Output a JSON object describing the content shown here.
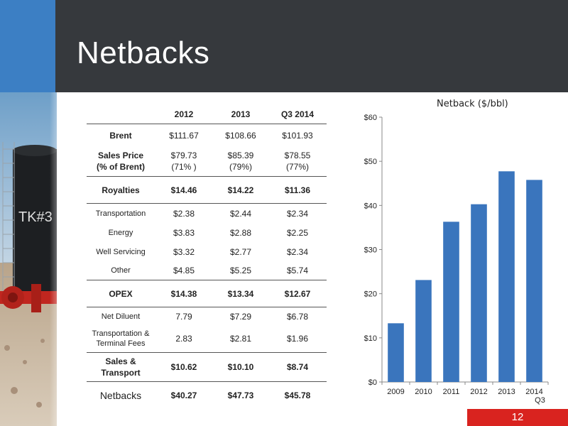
{
  "slide": {
    "title": "Netbacks",
    "page_number": "12",
    "colors": {
      "header": "#36393d",
      "accent_blue": "#3c7fc4",
      "page_badge": "#d9231f",
      "bar": "#3a75bd"
    }
  },
  "photo": {
    "tank_label": "TK#3"
  },
  "table": {
    "headers": [
      "",
      "2012",
      "2013",
      "Q3 2014"
    ],
    "brent": {
      "label": "Brent",
      "values": [
        "$111.67",
        "$108.66",
        "$101.93"
      ]
    },
    "sales_price": {
      "label_line1": "Sales Price",
      "label_line2": "(% of Brent)",
      "values": [
        "$79.73",
        "$85.39",
        "$78.55"
      ],
      "pcts": [
        "(71% )",
        "(79%)",
        "(77%)"
      ]
    },
    "royalties": {
      "label": "Royalties",
      "values": [
        "$14.46",
        "$14.22",
        "$11.36"
      ]
    },
    "opex_items": [
      {
        "label": "Transportation",
        "values": [
          "$2.38",
          "$2.44",
          "$2.34"
        ]
      },
      {
        "label": "Energy",
        "values": [
          "$3.83",
          "$2.88",
          "$2.25"
        ]
      },
      {
        "label": "Well Servicing",
        "values": [
          "$3.32",
          "$2.77",
          "$2.34"
        ]
      },
      {
        "label": "Other",
        "values": [
          "$4.85",
          "$5.25",
          "$5.74"
        ]
      }
    ],
    "opex": {
      "label": "OPEX",
      "values": [
        "$14.38",
        "$13.34",
        "$12.67"
      ]
    },
    "net_diluent": {
      "label": "Net Diluent",
      "values": [
        "7.79",
        "$7.29",
        "$6.78"
      ]
    },
    "transport_fees": {
      "label_line1": "Transportation &",
      "label_line2": "Terminal Fees",
      "values": [
        "2.83",
        "$2.81",
        "$1.96"
      ]
    },
    "sales_transport": {
      "label_line1": "Sales &",
      "label_line2": "Transport",
      "values": [
        "$10.62",
        "$10.10",
        "$8.74"
      ]
    },
    "netbacks": {
      "label": "Netbacks",
      "values": [
        "$40.27",
        "$47.73",
        "$45.78"
      ]
    }
  },
  "chart_data": {
    "type": "bar",
    "title": "Netback ($/bbl)",
    "categories": [
      "2009",
      "2010",
      "2011",
      "2012",
      "2013",
      "2014 Q3"
    ],
    "category_lines": [
      [
        "2009"
      ],
      [
        "2010"
      ],
      [
        "2011"
      ],
      [
        "2012"
      ],
      [
        "2013"
      ],
      [
        "2014",
        "Q3"
      ]
    ],
    "values": [
      13.3,
      23.1,
      36.3,
      40.27,
      47.73,
      45.78
    ],
    "ylim": [
      0,
      60
    ],
    "yticks": [
      0,
      10,
      20,
      30,
      40,
      50,
      60
    ],
    "ytick_labels": [
      "$0",
      "$10",
      "$20",
      "$30",
      "$40",
      "$50",
      "$60"
    ],
    "xlabel": "",
    "ylabel": "",
    "grid": false,
    "legend": "none",
    "bar_color": "#3a75bd"
  }
}
